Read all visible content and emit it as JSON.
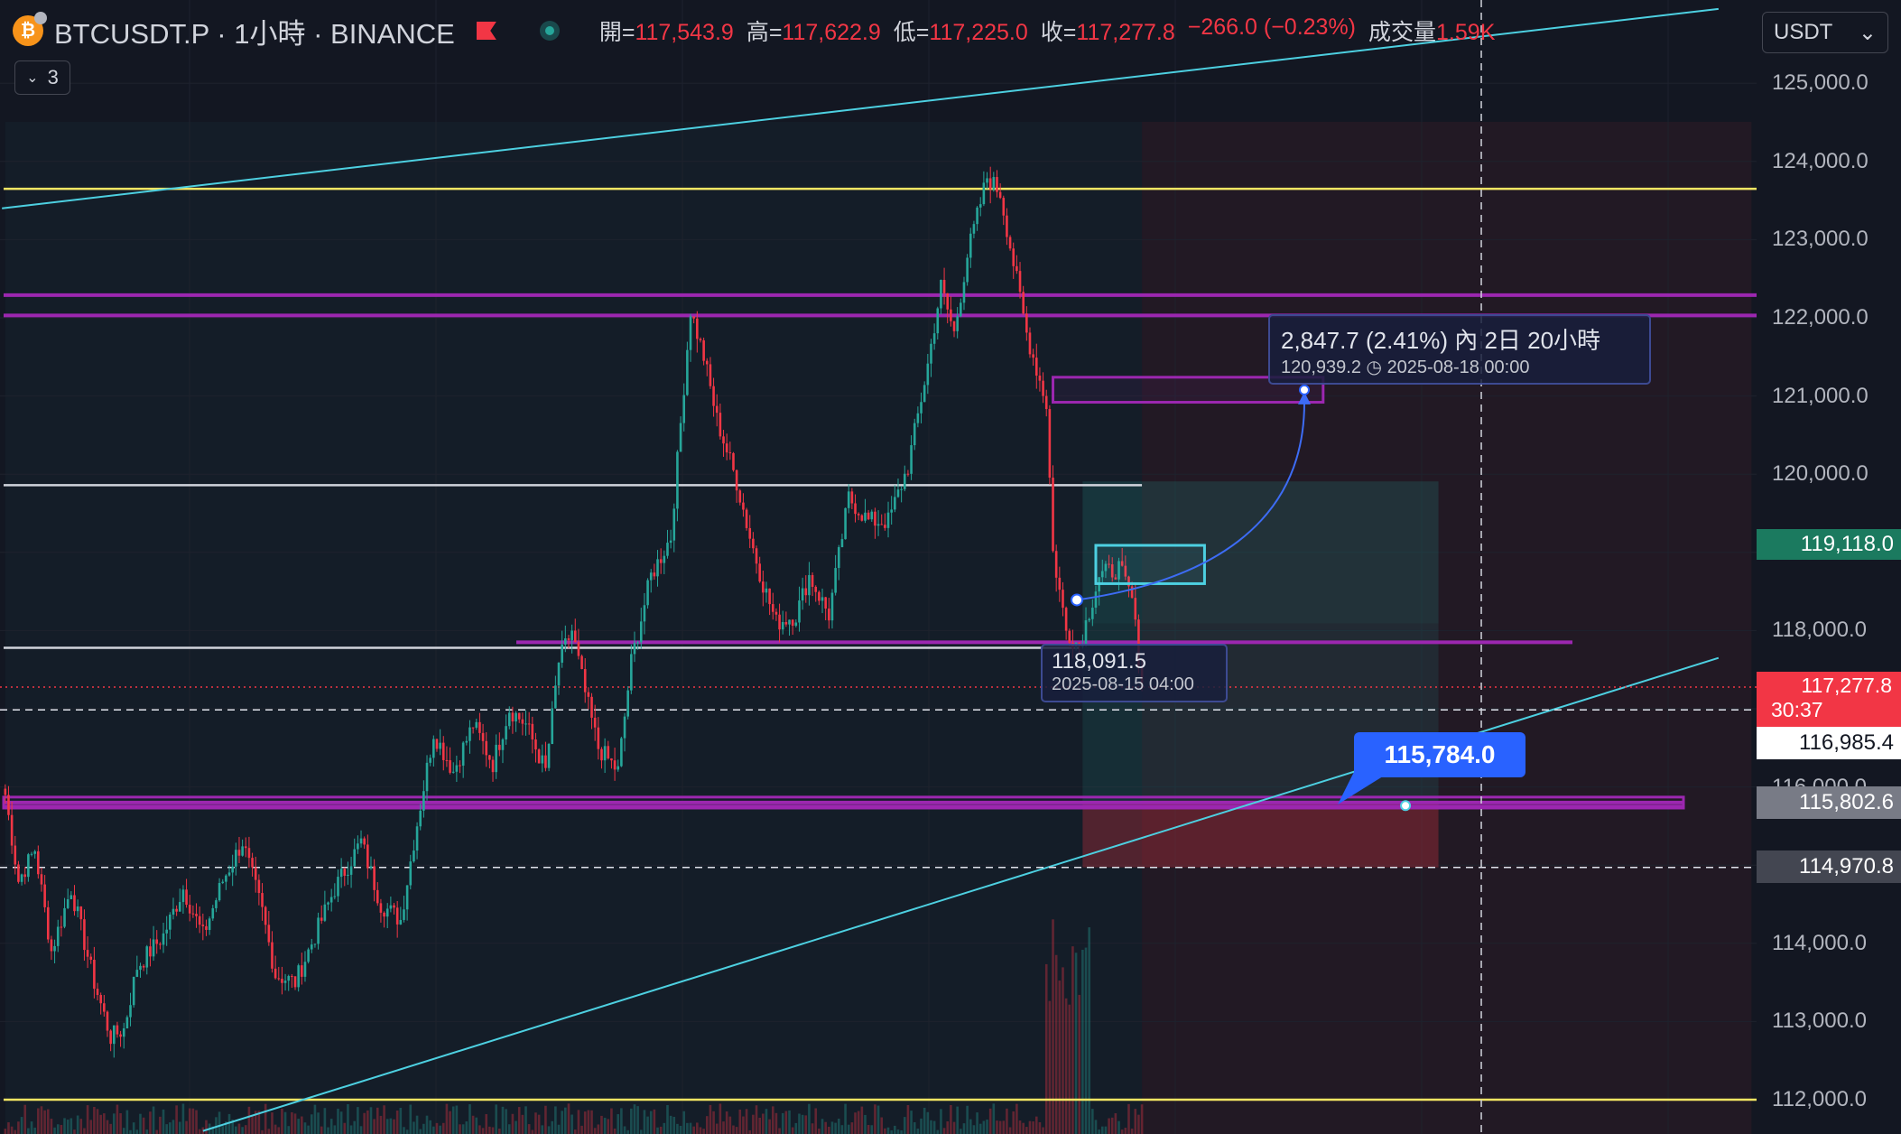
{
  "header": {
    "coin_letter": "₿",
    "symbol": "BTCUSDT.P · 1小時 · BINANCE",
    "ohlc": [
      {
        "key": "開=",
        "value": "117,543.9"
      },
      {
        "key": "高=",
        "value": "117,622.9"
      },
      {
        "key": "低=",
        "value": "117,225.0"
      },
      {
        "key": "收=",
        "value": "117,277.8"
      },
      {
        "key": "",
        "value": "−266.0 (−0.23%)"
      },
      {
        "key": "成交量",
        "value": "1.59K"
      }
    ],
    "indicator_count": "3"
  },
  "currency_select": {
    "value": "USDT",
    "chevron": "⌄"
  },
  "axis": {
    "labels": [
      "125,000.0",
      "124,000.0",
      "123,000.0",
      "122,000.0",
      "121,000.0",
      "120,000.0",
      "118,000.0",
      "116,000.0",
      "114,000.0",
      "113,000.0",
      "112,000.0"
    ],
    "tags": {
      "teal": "119,118.0",
      "last": "117,277.8",
      "countdown": "30:37",
      "white": "116,985.4",
      "gray1": "115,802.6",
      "gray2": "114,970.8"
    }
  },
  "annotations": {
    "target_line1": "2,847.7 (2.41%) 內 2日 20小時",
    "target_price": "120,939.2",
    "clock_icon": "clock-icon",
    "target_date": "2025-08-18  00:00",
    "entry_price": "118,091.5",
    "entry_date": "2025-08-15 04:00",
    "callout": "115,784.0"
  },
  "colors": {
    "bg": "#131722",
    "up": "#26a69a",
    "down": "#f23645",
    "purple": "#9c27b0",
    "yellow": "#ffeb3b",
    "trend": "#4dd0e1",
    "blue": "#2962ff"
  },
  "chart_data": {
    "type": "candlestick",
    "symbol": "BTCUSDT.P",
    "interval": "1小時",
    "exchange": "BINANCE",
    "ylim": [
      111900,
      125500
    ],
    "last": {
      "open": 117543.9,
      "high": 117622.9,
      "low": 117225.0,
      "close": 117277.8,
      "change": -266.0,
      "change_pct": -0.23,
      "volume": "1.59K"
    },
    "anchors": [
      [
        0,
        115900
      ],
      [
        4,
        114800
      ],
      [
        9,
        115200
      ],
      [
        14,
        113900
      ],
      [
        20,
        114700
      ],
      [
        27,
        113500
      ],
      [
        32,
        112800
      ],
      [
        36,
        112900
      ],
      [
        40,
        113700
      ],
      [
        48,
        114100
      ],
      [
        54,
        114700
      ],
      [
        60,
        114100
      ],
      [
        66,
        114800
      ],
      [
        72,
        115300
      ],
      [
        78,
        114400
      ],
      [
        82,
        113600
      ],
      [
        88,
        113500
      ],
      [
        94,
        114100
      ],
      [
        100,
        114700
      ],
      [
        108,
        115300
      ],
      [
        114,
        114500
      ],
      [
        120,
        114300
      ],
      [
        124,
        115300
      ],
      [
        130,
        116700
      ],
      [
        136,
        116200
      ],
      [
        142,
        116800
      ],
      [
        148,
        116300
      ],
      [
        153,
        117000
      ],
      [
        158,
        116800
      ],
      [
        164,
        116200
      ],
      [
        168,
        117600
      ],
      [
        172,
        118000
      ],
      [
        176,
        117200
      ],
      [
        180,
        116500
      ],
      [
        186,
        116200
      ],
      [
        190,
        117600
      ],
      [
        196,
        118700
      ],
      [
        202,
        119200
      ],
      [
        208,
        122100
      ],
      [
        212,
        121500
      ],
      [
        216,
        120700
      ],
      [
        222,
        119900
      ],
      [
        226,
        119200
      ],
      [
        230,
        118600
      ],
      [
        234,
        118100
      ],
      [
        240,
        118200
      ],
      [
        244,
        118700
      ],
      [
        250,
        118200
      ],
      [
        256,
        119700
      ],
      [
        262,
        119400
      ],
      [
        268,
        119400
      ],
      [
        274,
        120100
      ],
      [
        280,
        121400
      ],
      [
        284,
        122400
      ],
      [
        288,
        121800
      ],
      [
        292,
        122800
      ],
      [
        298,
        123800
      ],
      [
        302,
        123600
      ],
      [
        306,
        122700
      ],
      [
        310,
        121800
      ],
      [
        316,
        120900
      ],
      [
        318,
        119000
      ],
      [
        322,
        118000
      ],
      [
        326,
        117800
      ],
      [
        332,
        118700
      ],
      [
        338,
        118800
      ],
      [
        342,
        118400
      ],
      [
        345,
        117300
      ]
    ],
    "horizontal_levels": [
      {
        "price": 123650,
        "color": "yellow"
      },
      {
        "price": 122290,
        "color": "purple"
      },
      {
        "price": 122030,
        "color": "purple"
      },
      {
        "price": 119860,
        "color": "white",
        "extends_to_index": 345
      },
      {
        "price": 117850,
        "color": "purple"
      },
      {
        "price": 117780,
        "color": "white"
      },
      {
        "price": 115800,
        "color": "purple"
      },
      {
        "price": 115750,
        "color": "purple"
      },
      {
        "price": 112000,
        "color": "yellow"
      }
    ],
    "trend_lines": [
      {
        "from": [
          -1,
          123400
        ],
        "to": [
          520,
          125950
        ]
      },
      {
        "from": [
          60,
          111600
        ],
        "to": [
          520,
          117650
        ]
      }
    ],
    "dashed_levels": [
      116985.4,
      114970.8
    ],
    "dotted_levels": [
      117277.8
    ],
    "time_marker_index": 448,
    "position": {
      "entry": 118091.5,
      "target": 120939.2,
      "stop": 114970.8,
      "from_index": 327,
      "to_index": 435,
      "gain": "2,847.7 (2.41%)",
      "duration": "2日 20小時",
      "entry_date": "2025-08-15 04:00",
      "target_date": "2025-08-18 00:00"
    },
    "boxes": [
      {
        "price_top": 121240,
        "price_bottom": 120920,
        "from_index": 318,
        "to_index": 400,
        "color": "purple"
      },
      {
        "price_top": 119090,
        "price_bottom": 118600,
        "from_index": 331,
        "to_index": 364,
        "color": "teal"
      }
    ],
    "marker_price": 115784.0,
    "background_zones": [
      {
        "from_index": 0,
        "to_index": 345,
        "tint": "green"
      },
      {
        "from_index": 345,
        "to_index": 530,
        "tint": "red"
      }
    ]
  }
}
